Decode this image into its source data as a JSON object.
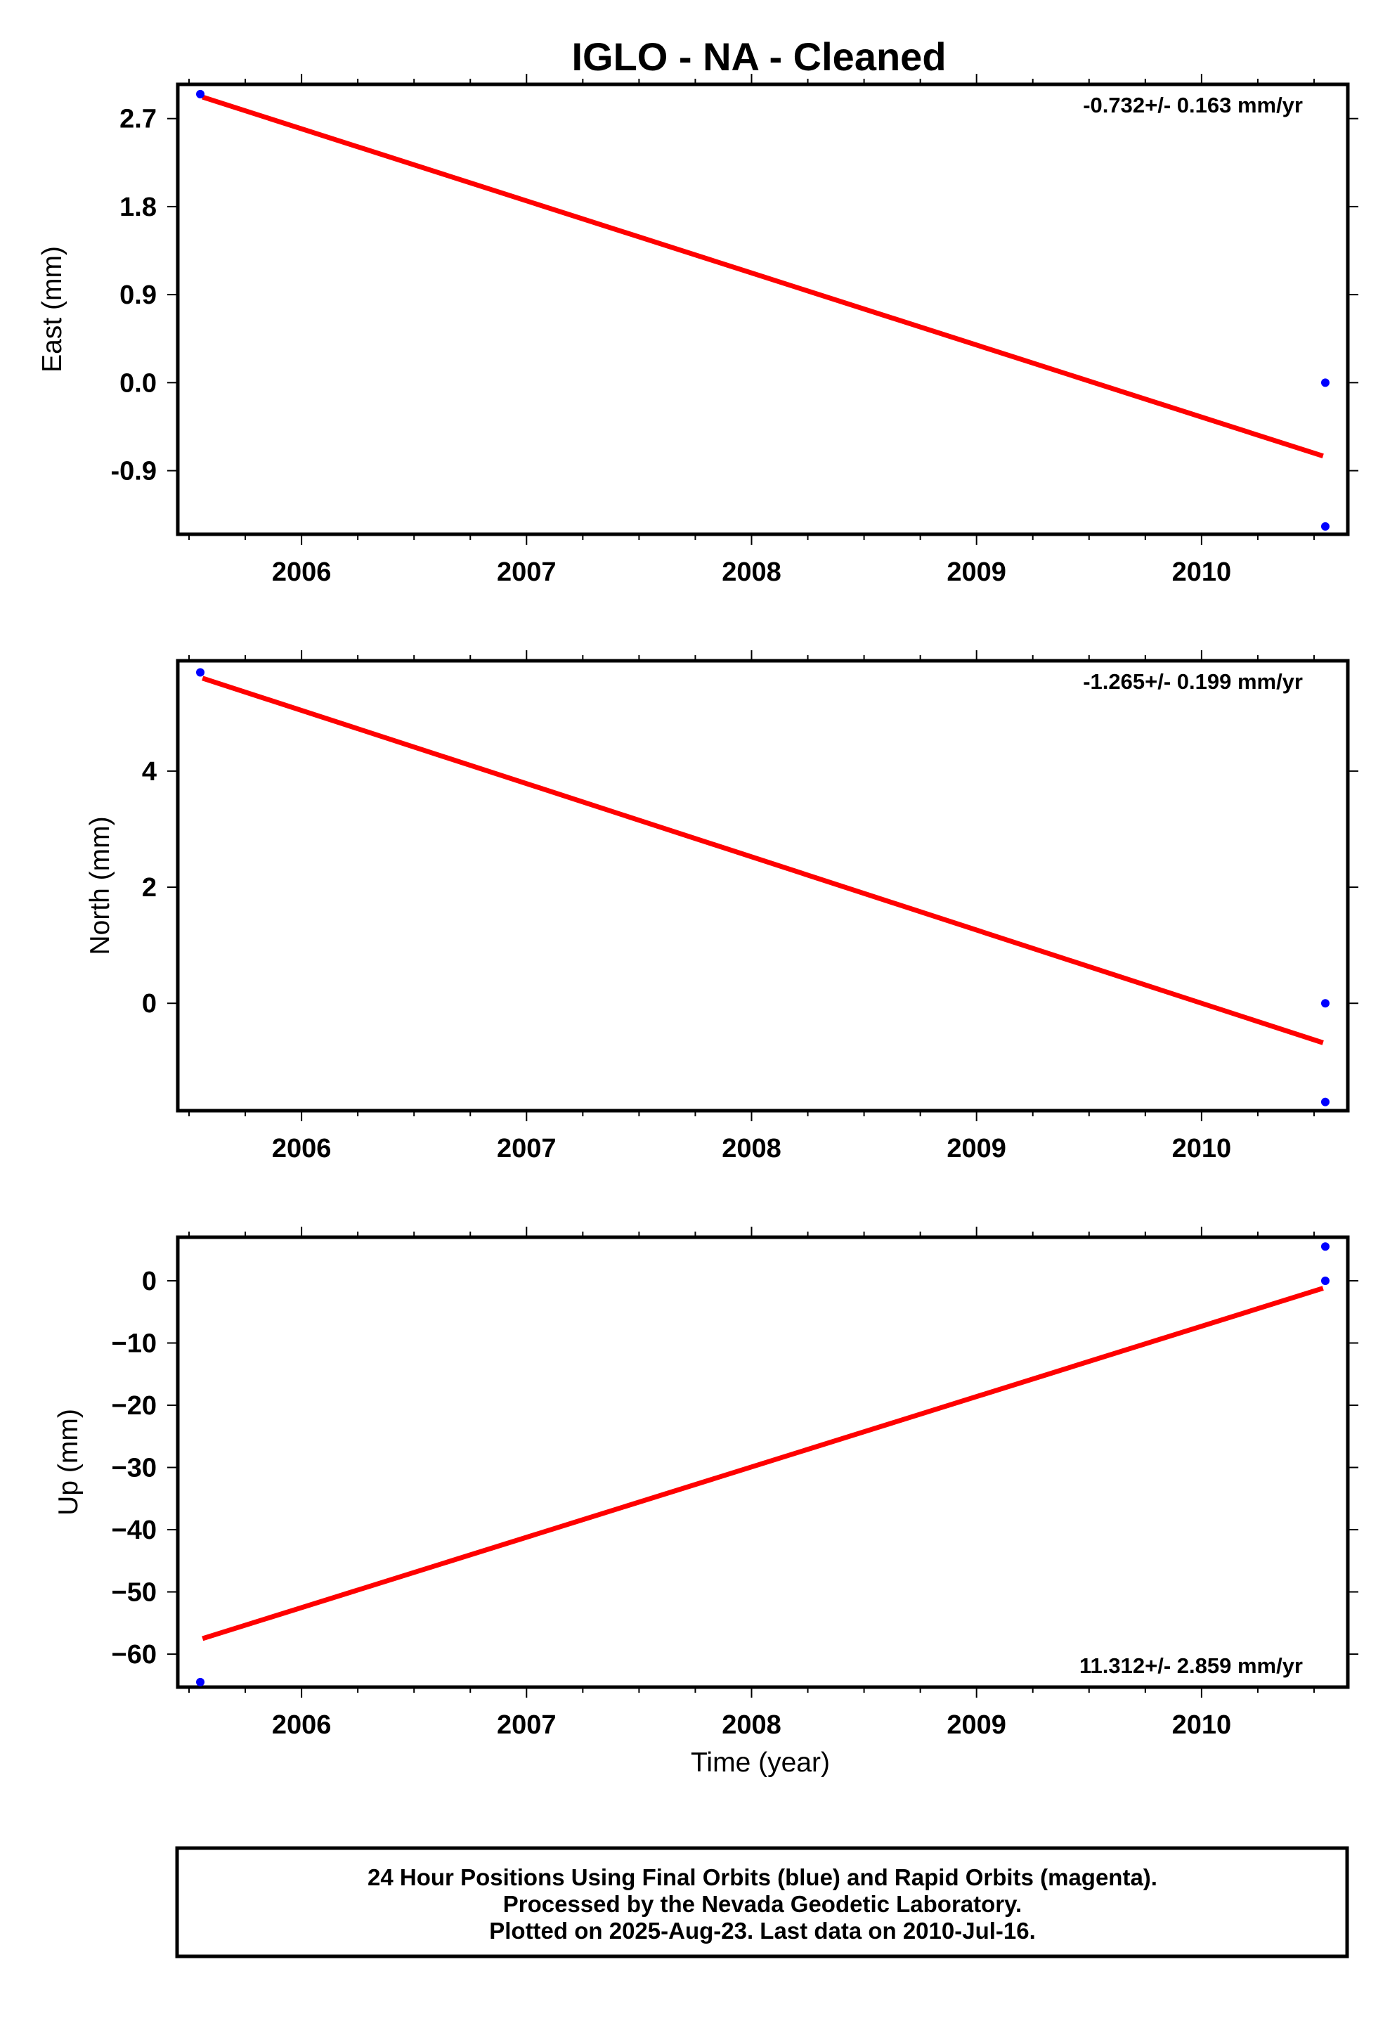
{
  "title": "IGLO  - NA - Cleaned",
  "xlabel": "Time (year)",
  "footer": [
    "24 Hour Positions Using Final Orbits (blue) and Rapid Orbits (magenta).",
    "Processed by the Nevada Geodetic Laboratory.",
    "Plotted on 2025-Aug-23. Last data on 2010-Jul-16."
  ],
  "colors": {
    "data_points": "#0000ff",
    "trend_line": "#ff0000",
    "frame": "#000000"
  },
  "chart_data": [
    {
      "type": "scatter",
      "ylabel": "East (mm)",
      "rate_text": "-0.732+/- 0.163 mm/yr",
      "rate_position": "top-right",
      "xlim": [
        2005.45,
        2010.65
      ],
      "ylim": [
        -1.55,
        3.05
      ],
      "x_ticks": [
        "2006",
        "2007",
        "2008",
        "2009",
        "2010"
      ],
      "y_ticks": [
        "2.7",
        "1.8",
        "0.9",
        "0.0",
        "-0.9"
      ],
      "y_tick_values": [
        2.7,
        1.8,
        0.9,
        0.0,
        -0.9
      ],
      "points": [
        {
          "x": 2005.55,
          "y": 2.95
        },
        {
          "x": 2010.55,
          "y": 0.0
        },
        {
          "x": 2010.55,
          "y": -1.47
        }
      ],
      "trend": [
        {
          "x": 2005.56,
          "y": 2.92
        },
        {
          "x": 2010.54,
          "y": -0.75
        }
      ],
      "grid": false
    },
    {
      "type": "scatter",
      "ylabel": "North (mm)",
      "rate_text": "-1.265+/- 0.199 mm/yr",
      "rate_position": "top-right",
      "xlim": [
        2005.45,
        2010.65
      ],
      "ylim": [
        -1.85,
        5.9
      ],
      "x_ticks": [
        "2006",
        "2007",
        "2008",
        "2009",
        "2010"
      ],
      "y_ticks": [
        "4",
        "2",
        "0"
      ],
      "y_tick_values": [
        4,
        2,
        0
      ],
      "points": [
        {
          "x": 2005.55,
          "y": 5.7
        },
        {
          "x": 2010.55,
          "y": 0.0
        },
        {
          "x": 2010.55,
          "y": -1.7
        }
      ],
      "trend": [
        {
          "x": 2005.56,
          "y": 5.6
        },
        {
          "x": 2010.54,
          "y": -0.68
        }
      ],
      "grid": false
    },
    {
      "type": "scatter",
      "ylabel": "Up (mm)",
      "rate_text": "11.312+/- 2.859 mm/yr",
      "rate_position": "bottom-right",
      "xlim": [
        2005.45,
        2010.65
      ],
      "ylim": [
        -65.3,
        7
      ],
      "x_ticks": [
        "2006",
        "2007",
        "2008",
        "2009",
        "2010"
      ],
      "y_ticks": [
        "0",
        "−10",
        "−20",
        "−30",
        "−40",
        "−50",
        "−60"
      ],
      "y_tick_values": [
        0,
        -10,
        -20,
        -30,
        -40,
        -50,
        -60
      ],
      "points": [
        {
          "x": 2005.55,
          "y": -64.5
        },
        {
          "x": 2010.55,
          "y": 5.5
        },
        {
          "x": 2010.55,
          "y": 0.0
        }
      ],
      "trend": [
        {
          "x": 2005.56,
          "y": -57.5
        },
        {
          "x": 2010.54,
          "y": -1.2
        }
      ],
      "grid": false
    }
  ]
}
